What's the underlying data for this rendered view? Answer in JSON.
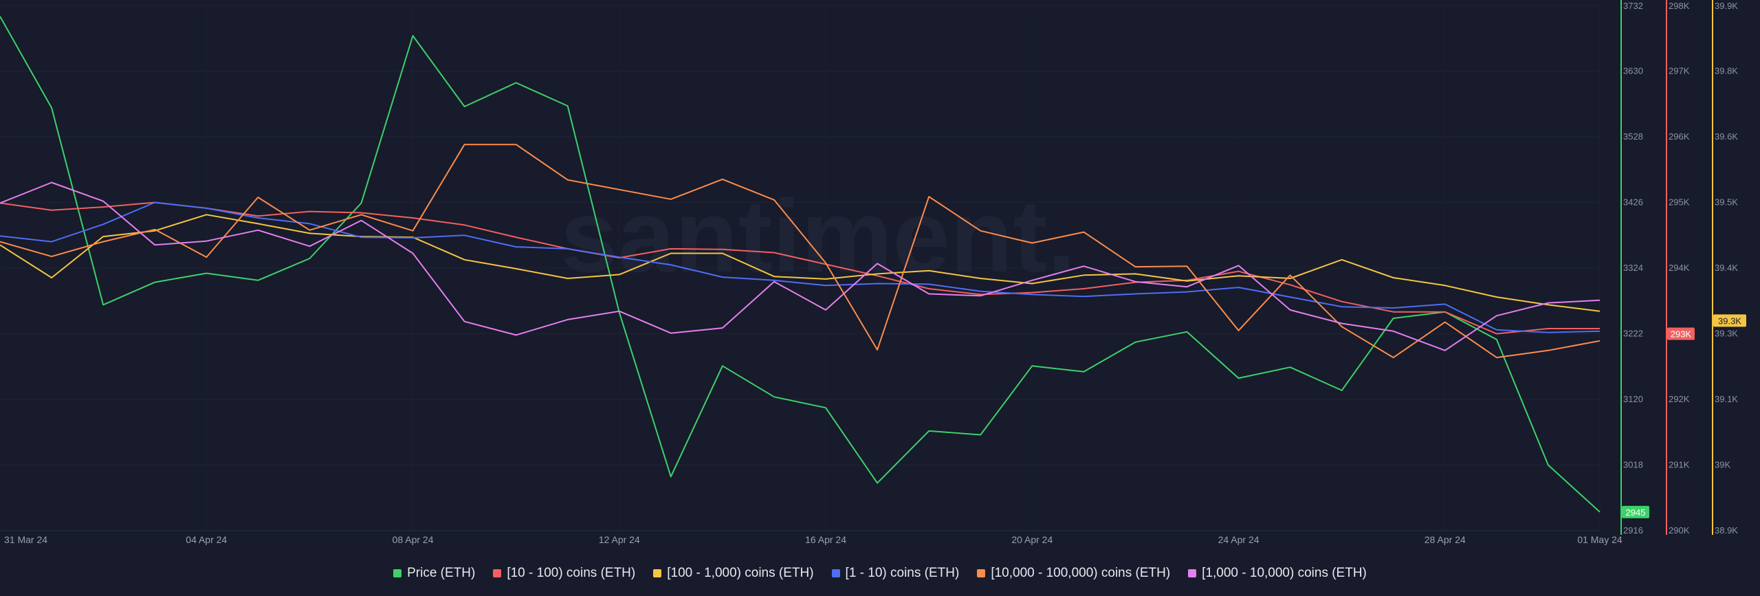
{
  "watermark": "santiment.",
  "chart_data": {
    "type": "line",
    "x": [
      "31 Mar 24",
      "01 Apr 24",
      "02 Apr 24",
      "03 Apr 24",
      "04 Apr 24",
      "05 Apr 24",
      "06 Apr 24",
      "07 Apr 24",
      "08 Apr 24",
      "09 Apr 24",
      "10 Apr 24",
      "11 Apr 24",
      "12 Apr 24",
      "13 Apr 24",
      "14 Apr 24",
      "15 Apr 24",
      "16 Apr 24",
      "17 Apr 24",
      "18 Apr 24",
      "19 Apr 24",
      "20 Apr 24",
      "21 Apr 24",
      "22 Apr 24",
      "23 Apr 24",
      "24 Apr 24",
      "25 Apr 24",
      "26 Apr 24",
      "27 Apr 24",
      "28 Apr 24",
      "29 Apr 24",
      "30 Apr 24",
      "01 May 24"
    ],
    "x_start": "31 Mar 24",
    "x_end": "01 May 24",
    "x_tick_labels": [
      "31 Mar 24",
      "04 Apr 24",
      "08 Apr 24",
      "12 Apr 24",
      "16 Apr 24",
      "20 Apr 24",
      "24 Apr 24",
      "28 Apr 24",
      "01 May 24"
    ],
    "grid": true,
    "legend_position": "bottom",
    "axes": [
      {
        "id": "price",
        "ticks": [
          "3732",
          "3630",
          "3528",
          "3426",
          "3324",
          "3222",
          "3120",
          "3018",
          "2916"
        ],
        "range": [
          2916,
          3732
        ],
        "color": "#3dd16a",
        "last_badge": "2945"
      },
      {
        "id": "k293",
        "ticks": [
          "298K",
          "297K",
          "296K",
          "295K",
          "294K",
          "293K",
          "292K",
          "291K",
          "290K"
        ],
        "range": [
          290000,
          298000
        ],
        "color": "#f26060",
        "last_badge": "293K"
      },
      {
        "id": "k39",
        "ticks": [
          "39.9K",
          "39.8K",
          "39.6K",
          "39.5K",
          "39.4K",
          "39.3K",
          "39.1K",
          "39K",
          "38.9K"
        ],
        "range": [
          38900,
          39900
        ],
        "color": "#f5c542",
        "last_badge": "39.3K"
      }
    ],
    "series": [
      {
        "name": "Price (ETH)",
        "color": "#3dd16a",
        "axis": "price",
        "values": [
          3715,
          3573,
          3267,
          3302,
          3316,
          3305,
          3339,
          3425,
          3685,
          3575,
          3612,
          3576,
          3255,
          3000,
          3172,
          3124,
          3107,
          2990,
          3071,
          3065,
          3172,
          3163,
          3209,
          3225,
          3153,
          3170,
          3134,
          3246,
          3256,
          3213,
          3018,
          2945
        ]
      },
      {
        "name": "[10 - 100) coins (ETH)",
        "color": "#f26060",
        "axis": "price",
        "values": [
          3425,
          3414,
          3419,
          3426,
          3417,
          3405,
          3412,
          3410,
          3402,
          3391,
          3372,
          3354,
          3340,
          3354,
          3353,
          3348,
          3330,
          3312,
          3292,
          3283,
          3286,
          3292,
          3302,
          3305,
          3319,
          3298,
          3272,
          3256,
          3256,
          3222,
          3230,
          3230
        ]
      },
      {
        "name": "[100 - 1,000) coins (ETH)",
        "color": "#f5c542",
        "axis": "price",
        "values": [
          3360,
          3309,
          3373,
          3382,
          3407,
          3393,
          3378,
          3373,
          3372,
          3337,
          3323,
          3308,
          3314,
          3347,
          3347,
          3311,
          3307,
          3315,
          3320,
          3308,
          3300,
          3313,
          3315,
          3304,
          3312,
          3308,
          3337,
          3309,
          3297,
          3279,
          3267,
          3257
        ]
      },
      {
        "name": "[1 - 10) coins (ETH)",
        "color": "#4f6df5",
        "axis": "price",
        "values": [
          3374,
          3365,
          3392,
          3426,
          3417,
          3402,
          3393,
          3372,
          3371,
          3375,
          3357,
          3354,
          3341,
          3329,
          3310,
          3305,
          3297,
          3300,
          3299,
          3288,
          3283,
          3280,
          3284,
          3287,
          3294,
          3279,
          3264,
          3262,
          3268,
          3228,
          3224,
          3226
        ]
      },
      {
        "name": "[10,000 - 100,000) coins (ETH)",
        "color": "#ff8c4a",
        "axis": "price",
        "values": [
          3365,
          3342,
          3365,
          3384,
          3341,
          3434,
          3383,
          3407,
          3382,
          3516,
          3516,
          3461,
          3446,
          3431,
          3462,
          3430,
          3332,
          3197,
          3435,
          3382,
          3363,
          3380,
          3326,
          3327,
          3227,
          3313,
          3233,
          3185,
          3240,
          3185,
          3196,
          3211
        ]
      },
      {
        "name": "[1,000 - 10,000) coins (ETH)",
        "color": "#e57ff0",
        "axis": "price",
        "values": [
          3425,
          3457,
          3428,
          3360,
          3366,
          3383,
          3358,
          3398,
          3347,
          3241,
          3220,
          3244,
          3257,
          3223,
          3231,
          3303,
          3259,
          3331,
          3284,
          3281,
          3305,
          3327,
          3303,
          3295,
          3328,
          3259,
          3238,
          3226,
          3196,
          3250,
          3270,
          3274
        ]
      }
    ]
  }
}
